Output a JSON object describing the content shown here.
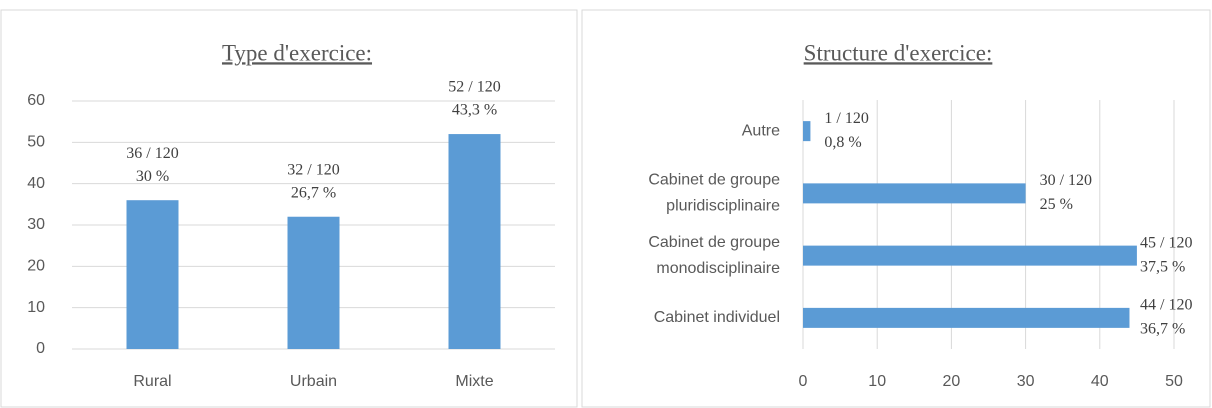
{
  "chart_data": [
    {
      "type": "bar",
      "title": "Type d'exercice:",
      "categories": [
        "Rural",
        "Urbain",
        "Mixte"
      ],
      "values": [
        36,
        32,
        52
      ],
      "value_labels": [
        [
          "36 / 120",
          "30 %"
        ],
        [
          "32 / 120",
          "26,7 %"
        ],
        [
          "52 / 120",
          "43,3 %"
        ]
      ],
      "color": "#5b9bd5",
      "ylim": [
        0,
        60
      ],
      "yticks": [
        0,
        10,
        20,
        30,
        40,
        50,
        60
      ],
      "grid": true
    },
    {
      "type": "hbar",
      "title": "Structure d'exercice:",
      "categories": [
        [
          "Autre"
        ],
        [
          "Cabinet de groupe",
          "pluridisciplinaire"
        ],
        [
          "Cabinet de groupe",
          "monodisciplinaire"
        ],
        [
          "Cabinet individuel"
        ]
      ],
      "values": [
        1,
        30,
        45,
        44
      ],
      "value_labels": [
        [
          "1 / 120",
          "0,8 %"
        ],
        [
          "30 / 120",
          "25 %"
        ],
        [
          "45 / 120",
          "37,5 %"
        ],
        [
          "44 / 120",
          "36,7 %"
        ]
      ],
      "color": "#5b9bd5",
      "xlim": [
        0,
        50
      ],
      "xticks": [
        0,
        10,
        20,
        30,
        40,
        50
      ],
      "grid": true
    }
  ]
}
